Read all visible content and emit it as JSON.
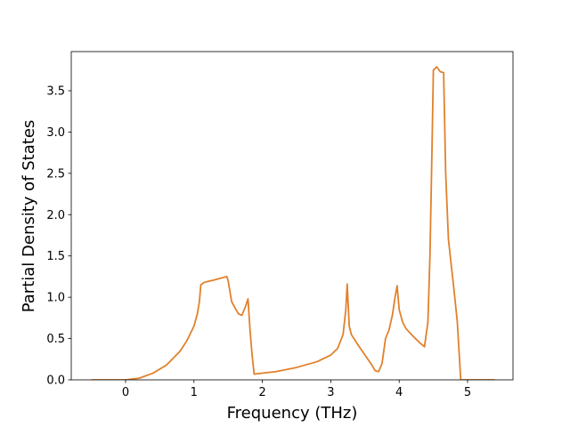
{
  "chart_data": {
    "type": "line",
    "xlabel": "Frequency (THz)",
    "ylabel": "Partial Density of States",
    "color": "#e1812c",
    "x": [
      -0.5,
      0,
      0.2,
      0.4,
      0.6,
      0.8,
      0.9,
      1.0,
      1.05,
      1.08,
      1.1,
      1.15,
      1.3,
      1.48,
      1.5,
      1.55,
      1.6,
      1.65,
      1.7,
      1.75,
      1.79,
      1.82,
      1.85,
      1.88,
      2.2,
      2.5,
      2.8,
      3.0,
      3.1,
      3.18,
      3.22,
      3.24,
      3.27,
      3.3,
      3.4,
      3.5,
      3.6,
      3.65,
      3.7,
      3.75,
      3.8,
      3.85,
      3.9,
      3.94,
      3.97,
      4.0,
      4.05,
      4.1,
      4.2,
      4.3,
      4.37,
      4.42,
      4.45,
      4.48,
      4.5,
      4.55,
      4.6,
      4.65,
      4.68,
      4.72,
      4.8,
      4.85,
      4.9,
      5.0,
      5.4
    ],
    "values": [
      0,
      0,
      0.02,
      0.08,
      0.18,
      0.35,
      0.48,
      0.65,
      0.8,
      0.95,
      1.15,
      1.18,
      1.21,
      1.25,
      1.2,
      0.95,
      0.87,
      0.8,
      0.78,
      0.88,
      0.98,
      0.6,
      0.3,
      0.07,
      0.1,
      0.15,
      0.22,
      0.3,
      0.38,
      0.55,
      0.85,
      1.16,
      0.65,
      0.55,
      0.42,
      0.3,
      0.18,
      0.11,
      0.1,
      0.2,
      0.5,
      0.6,
      0.78,
      1.0,
      1.14,
      0.85,
      0.7,
      0.62,
      0.53,
      0.45,
      0.4,
      0.7,
      1.5,
      2.8,
      3.75,
      3.79,
      3.73,
      3.72,
      2.5,
      1.7,
      1.1,
      0.7,
      0,
      0,
      0
    ],
    "xlim": [
      -0.794,
      5.664
    ],
    "ylim": [
      0,
      3.974
    ],
    "xticks": [
      0,
      1,
      2,
      3,
      4,
      5
    ],
    "yticks": [
      {
        "value": 0,
        "label": "0.0"
      },
      {
        "value": 0.5,
        "label": "0.5"
      },
      {
        "value": 1,
        "label": "1.0"
      },
      {
        "value": 1.5,
        "label": "1.5"
      },
      {
        "value": 2,
        "label": "2.0"
      },
      {
        "value": 2.5,
        "label": "2.5"
      },
      {
        "value": 3,
        "label": "3.0"
      },
      {
        "value": 3.5,
        "label": "3.5"
      }
    ],
    "grid": false
  }
}
